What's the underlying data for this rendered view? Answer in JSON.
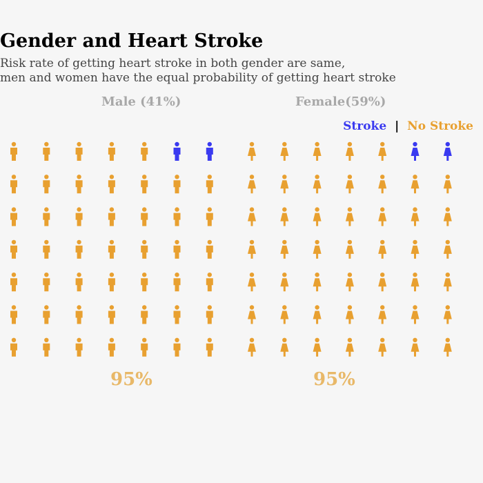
{
  "title": "Gender and Heart Stroke",
  "subtitle": [
    "Risk rate of getting heart stroke in both gender are same,",
    "men and women have the equal probability of getting heart stroke"
  ],
  "legend": {
    "stroke": "Stroke",
    "separator": "|",
    "no_stroke": "No Stroke"
  },
  "colors": {
    "stroke": "#3a3af0",
    "no_stroke": "#e8a030"
  },
  "chart_data": {
    "type": "waffle",
    "panels": [
      {
        "label": "Male (41%)",
        "gender": "male",
        "stroke_count": 2,
        "no_stroke_count": 47,
        "rows": 7,
        "cols": 7,
        "percent_label": "95%"
      },
      {
        "label": "Female(59%)",
        "gender": "female",
        "stroke_count": 2,
        "no_stroke_count": 47,
        "rows": 7,
        "cols": 7,
        "percent_label": "95%"
      }
    ]
  }
}
